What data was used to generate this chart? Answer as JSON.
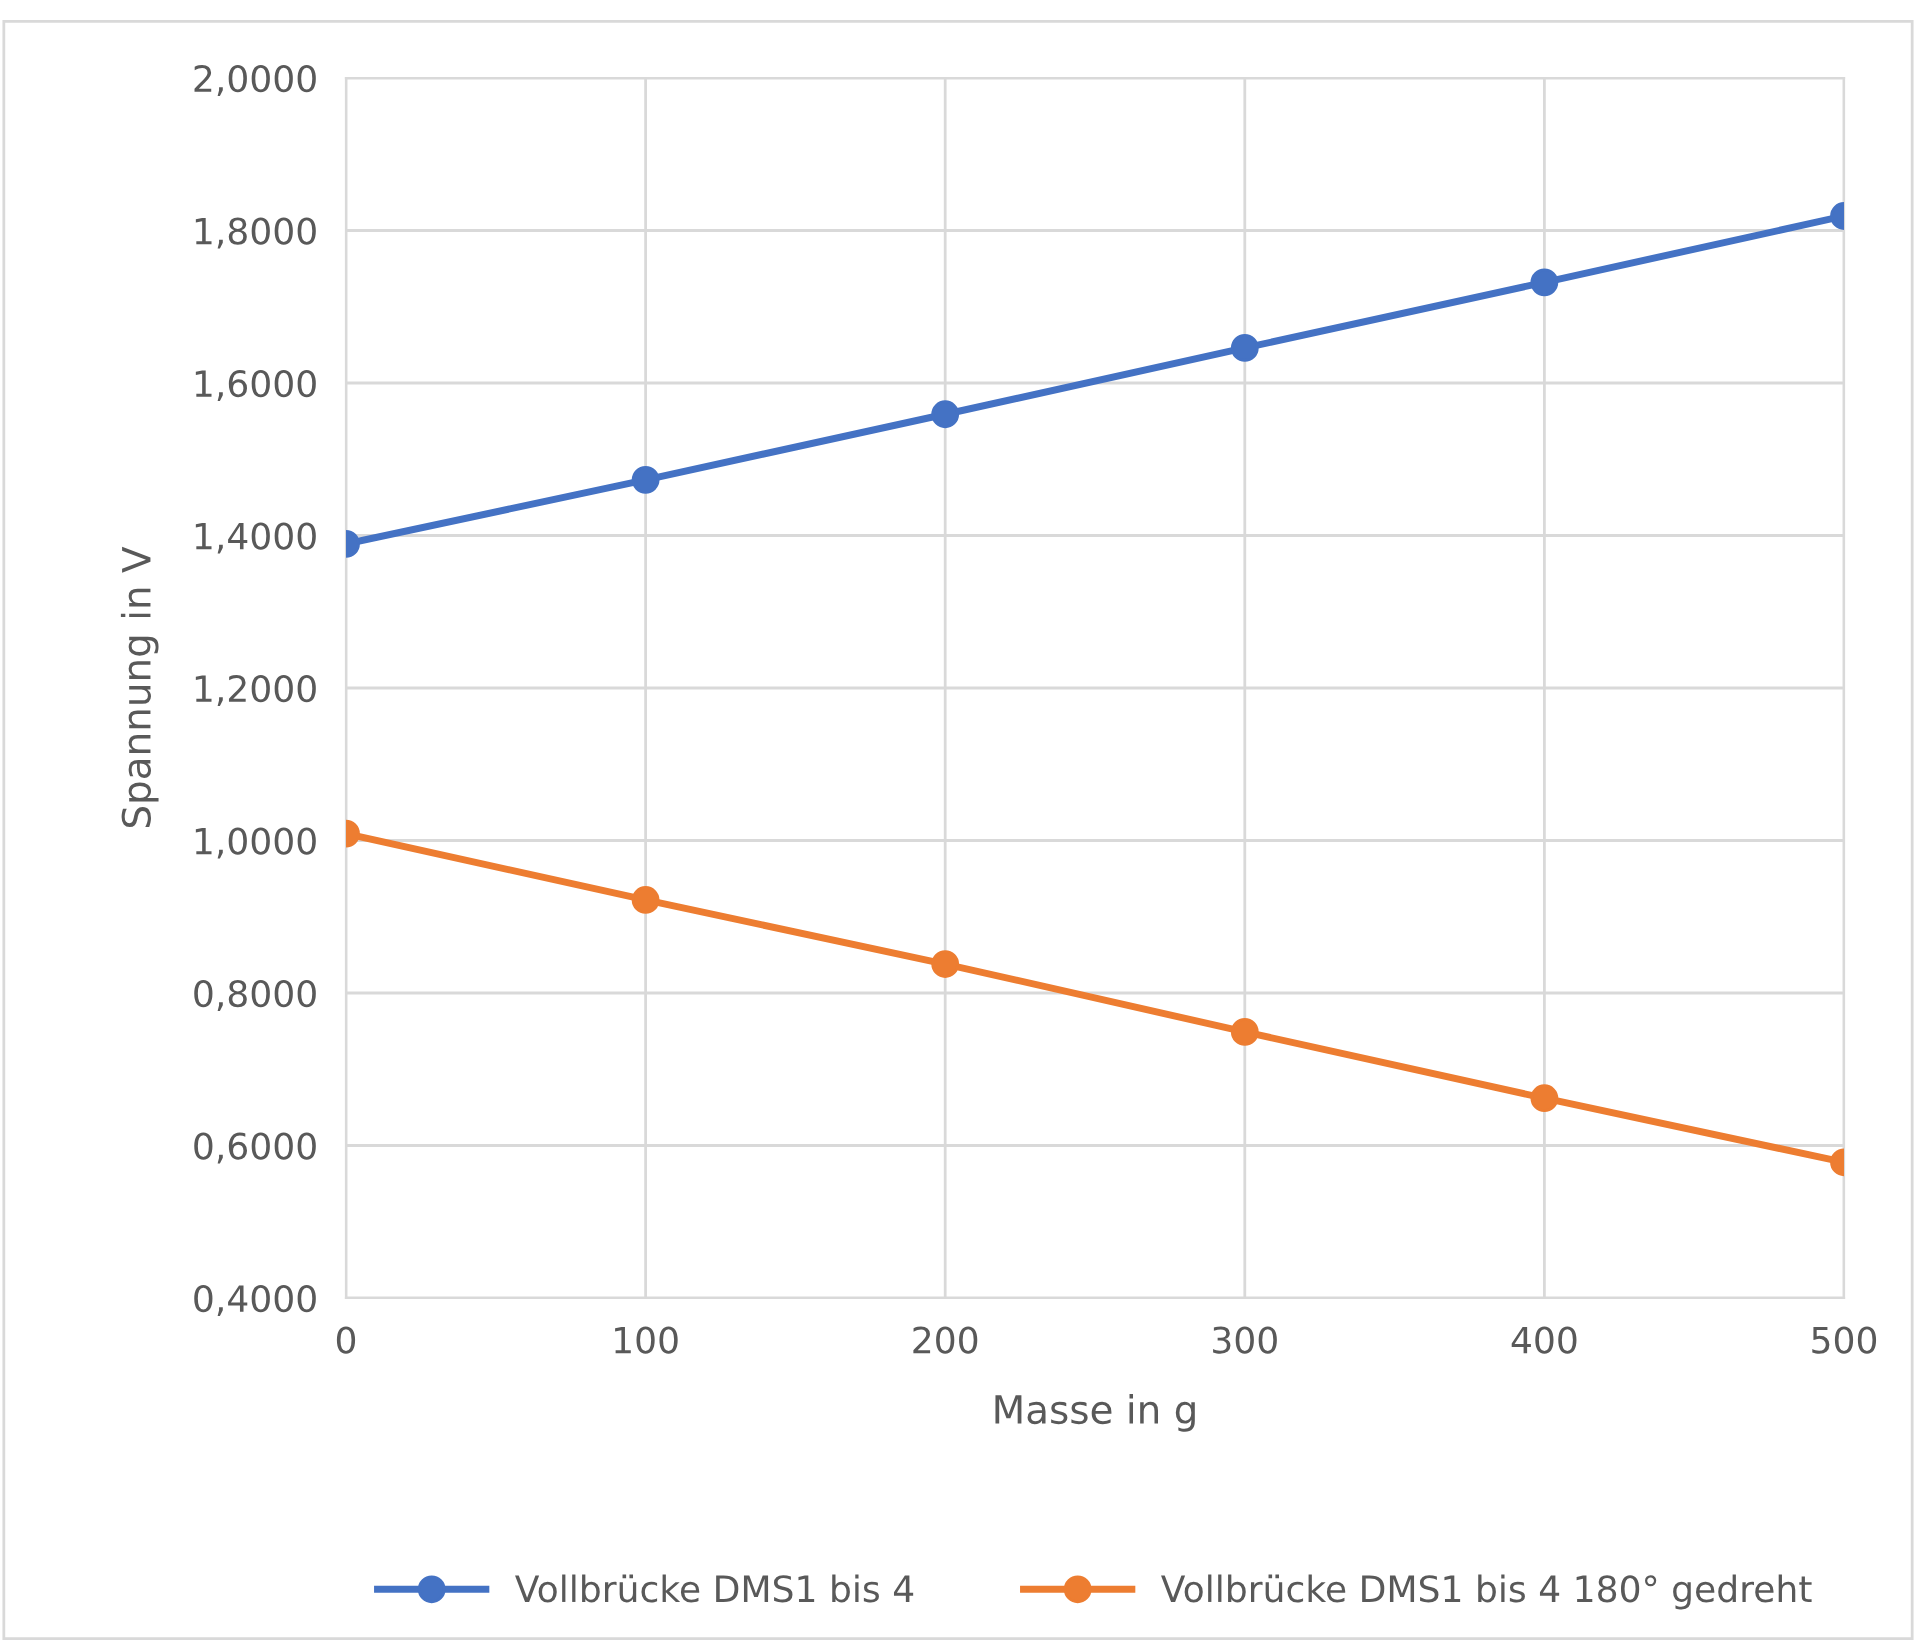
{
  "chart_data": {
    "type": "line",
    "xlabel": "Masse in g",
    "ylabel": "Spannung in V",
    "x": [
      0,
      100,
      200,
      300,
      400,
      500
    ],
    "series": [
      {
        "name": "Vollbrücke DMS1 bis 4",
        "color": "#4472c4",
        "values": [
          1.389,
          1.473,
          1.559,
          1.646,
          1.732,
          1.819
        ]
      },
      {
        "name": "Vollbrücke DMS1 bis 4 180° gedreht",
        "color": "#ed7d31",
        "values": [
          1.009,
          0.922,
          0.838,
          0.749,
          0.662,
          0.578
        ]
      }
    ],
    "xlim": [
      0,
      500
    ],
    "xticks": [
      0,
      100,
      200,
      300,
      400,
      500
    ],
    "ylim": [
      0.4,
      2.0
    ],
    "yticks": [
      {
        "value": 0.4,
        "label": "0,4000"
      },
      {
        "value": 0.6,
        "label": "0,6000"
      },
      {
        "value": 0.8,
        "label": "0,8000"
      },
      {
        "value": 1.0,
        "label": "1,0000"
      },
      {
        "value": 1.2,
        "label": "1,2000"
      },
      {
        "value": 1.4,
        "label": "1,4000"
      },
      {
        "value": 1.6,
        "label": "1,6000"
      },
      {
        "value": 1.8,
        "label": "1,8000"
      },
      {
        "value": 2.0,
        "label": "2,0000"
      }
    ],
    "grid": true,
    "legend": "bottom",
    "marker": "circle",
    "line_style": "solid"
  }
}
